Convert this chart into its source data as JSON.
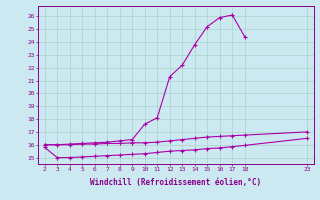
{
  "xlabel": "Windchill (Refroidissement éolien,°C)",
  "bg_color": "#cce8f0",
  "grid_color": "#aad4cc",
  "line_color": "#aa00aa",
  "line_color2": "#880088",
  "x_ticks": [
    2,
    3,
    4,
    5,
    6,
    7,
    8,
    9,
    10,
    11,
    12,
    13,
    14,
    15,
    16,
    17,
    18,
    23
  ],
  "xlim": [
    1.5,
    23.5
  ],
  "ylim": [
    14.5,
    26.8
  ],
  "y_ticks": [
    15,
    16,
    17,
    18,
    19,
    20,
    21,
    22,
    23,
    24,
    25,
    26
  ],
  "series1_x": [
    2,
    3,
    4,
    5,
    6,
    7,
    8,
    9,
    10,
    11,
    12,
    13,
    14,
    15,
    16,
    17,
    18,
    23
  ],
  "series1_y": [
    16.0,
    16.0,
    16.0,
    16.05,
    16.05,
    16.1,
    16.1,
    16.15,
    16.15,
    16.2,
    16.3,
    16.4,
    16.5,
    16.6,
    16.65,
    16.7,
    16.75,
    17.0
  ],
  "series2_x": [
    2,
    3,
    4,
    5,
    6,
    7,
    8,
    9,
    10,
    11,
    12,
    13,
    14,
    15,
    16,
    17,
    18,
    23
  ],
  "series2_y": [
    15.8,
    15.0,
    15.0,
    15.05,
    15.1,
    15.15,
    15.2,
    15.25,
    15.3,
    15.4,
    15.5,
    15.55,
    15.6,
    15.7,
    15.75,
    15.85,
    15.95,
    16.5
  ],
  "series3_x": [
    2,
    3,
    4,
    5,
    6,
    7,
    8,
    9,
    10,
    11,
    12,
    13,
    14,
    15,
    16,
    17,
    18
  ],
  "series3_y": [
    16.0,
    16.0,
    16.05,
    16.1,
    16.15,
    16.2,
    16.3,
    16.4,
    17.6,
    18.1,
    21.3,
    22.2,
    23.8,
    25.2,
    25.9,
    26.1,
    24.4
  ]
}
